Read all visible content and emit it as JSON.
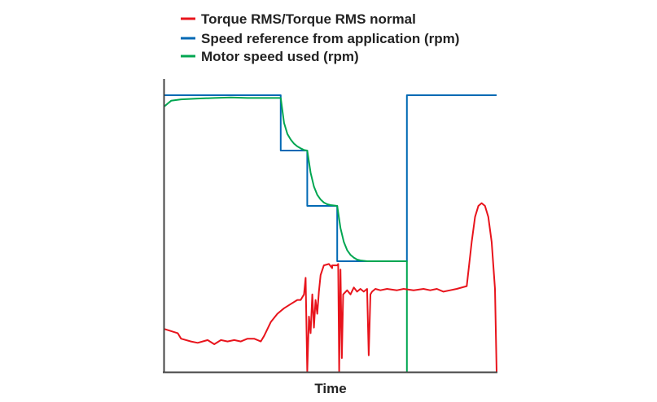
{
  "chart_data": {
    "type": "line",
    "title": "",
    "xlabel": "Time",
    "ylabel": "",
    "xlim": [
      0,
      100
    ],
    "ylim": [
      0,
      100
    ],
    "grid": false,
    "legend_position": "top",
    "series": [
      {
        "name": "Torque RMS/Torque RMS normal",
        "color": "#e8141c",
        "points": [
          [
            0,
            15.5
          ],
          [
            4,
            14
          ],
          [
            5,
            12
          ],
          [
            8,
            11
          ],
          [
            10,
            10.5
          ],
          [
            13,
            11.5
          ],
          [
            15,
            10
          ],
          [
            17,
            11.5
          ],
          [
            19,
            11
          ],
          [
            21,
            11.5
          ],
          [
            23,
            11
          ],
          [
            25,
            12
          ],
          [
            27,
            12
          ],
          [
            29,
            11
          ],
          [
            30,
            13
          ],
          [
            32,
            18
          ],
          [
            34,
            21
          ],
          [
            36,
            23
          ],
          [
            38,
            24.5
          ],
          [
            40,
            26
          ],
          [
            41,
            26
          ],
          [
            42,
            28
          ],
          [
            42.5,
            34
          ],
          [
            43,
            0
          ],
          [
            43.5,
            20
          ],
          [
            44,
            14
          ],
          [
            44.5,
            28
          ],
          [
            45,
            16
          ],
          [
            45.5,
            26
          ],
          [
            46,
            21
          ],
          [
            46.5,
            29
          ],
          [
            47,
            35
          ],
          [
            48,
            38.5
          ],
          [
            49.5,
            39
          ],
          [
            50.5,
            37.5
          ],
          [
            50.5,
            38.5
          ],
          [
            52,
            38.5
          ],
          [
            52.3,
            39
          ],
          [
            52.6,
            0
          ],
          [
            53,
            37
          ],
          [
            53.4,
            5
          ],
          [
            53.8,
            28
          ],
          [
            55,
            29.5
          ],
          [
            56,
            28
          ],
          [
            57,
            30.5
          ],
          [
            58,
            29
          ],
          [
            59,
            30
          ],
          [
            60,
            29
          ],
          [
            61,
            30
          ],
          [
            61.5,
            6
          ],
          [
            62,
            28
          ],
          [
            62.5,
            29
          ],
          [
            63.5,
            30
          ],
          [
            65,
            29.5
          ],
          [
            67,
            30
          ],
          [
            70,
            29.5
          ],
          [
            72,
            30
          ],
          [
            75,
            29.5
          ],
          [
            78,
            30
          ],
          [
            80,
            29.5
          ],
          [
            82,
            30
          ],
          [
            84,
            29
          ],
          [
            86,
            29.5
          ],
          [
            88,
            30
          ],
          [
            91,
            31
          ],
          [
            92.5,
            47
          ],
          [
            93.5,
            56
          ],
          [
            94.5,
            60
          ],
          [
            95.5,
            61
          ],
          [
            96.5,
            60
          ],
          [
            97.5,
            56
          ],
          [
            98.5,
            47
          ],
          [
            99.5,
            30
          ],
          [
            101,
            0
          ],
          [
            120,
            0
          ]
        ]
      },
      {
        "name": "Speed reference from application (rpm)",
        "color": "#0069b4",
        "points": [
          [
            0,
            100
          ],
          [
            35,
            100
          ],
          [
            35,
            80
          ],
          [
            43,
            80
          ],
          [
            43,
            60
          ],
          [
            52,
            60
          ],
          [
            52,
            40
          ],
          [
            73,
            40
          ],
          [
            73,
            100
          ],
          [
            100,
            100
          ]
        ]
      },
      {
        "name": "Motor speed used (rpm)",
        "color": "#00a651",
        "points": [
          [
            0,
            96
          ],
          [
            2,
            98
          ],
          [
            5,
            98.5
          ],
          [
            10,
            98.8
          ],
          [
            15,
            99
          ],
          [
            20,
            99.2
          ],
          [
            25,
            99
          ],
          [
            30,
            99
          ],
          [
            35,
            99
          ],
          [
            36,
            90
          ],
          [
            37,
            86
          ],
          [
            38,
            84
          ],
          [
            39,
            82.5
          ],
          [
            40,
            81.5
          ],
          [
            41,
            80.8
          ],
          [
            42,
            80.2
          ],
          [
            43,
            80
          ],
          [
            44,
            72
          ],
          [
            45,
            67
          ],
          [
            46,
            64
          ],
          [
            47,
            62.3
          ],
          [
            48,
            61.2
          ],
          [
            49,
            60.6
          ],
          [
            50,
            60.3
          ],
          [
            52,
            60
          ],
          [
            53,
            52
          ],
          [
            54,
            47
          ],
          [
            55,
            44
          ],
          [
            56,
            42.3
          ],
          [
            57,
            41.3
          ],
          [
            58,
            40.6
          ],
          [
            59,
            40.3
          ],
          [
            61,
            40
          ],
          [
            73,
            40
          ],
          [
            73,
            0
          ]
        ]
      }
    ]
  }
}
